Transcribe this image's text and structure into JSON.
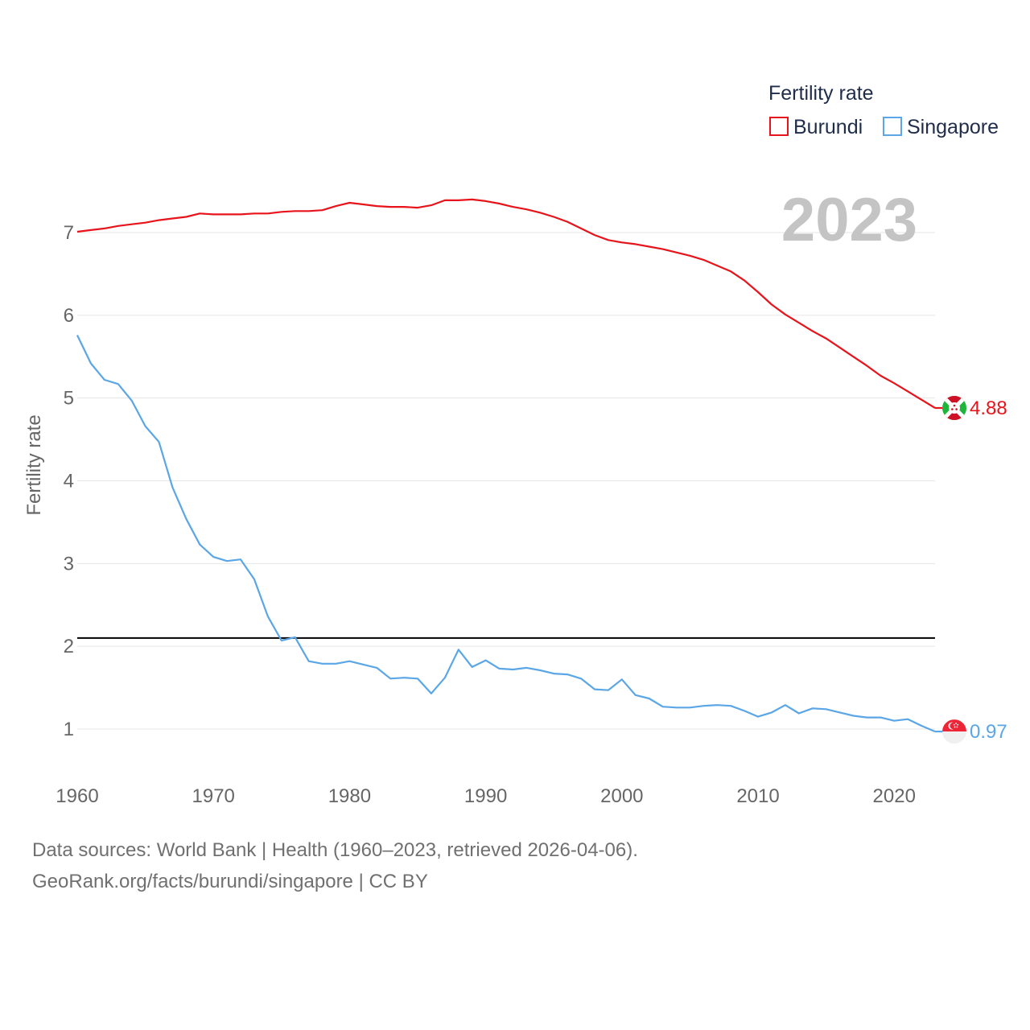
{
  "chart_data": {
    "type": "line",
    "title": "",
    "year_label": "2023",
    "ylabel": "Fertility rate",
    "xlabel": "",
    "xlim": [
      1960,
      2023
    ],
    "ylim": [
      0.5,
      7.7
    ],
    "x_ticks": [
      1960,
      1970,
      1980,
      1990,
      2000,
      2010,
      2020
    ],
    "y_ticks": [
      1,
      2,
      3,
      4,
      5,
      6,
      7
    ],
    "reference_line": {
      "y": 2.1,
      "color": "#000000"
    },
    "legend": {
      "title": "Fertility rate",
      "position": "top-right"
    },
    "x": [
      1960,
      1961,
      1962,
      1963,
      1964,
      1965,
      1966,
      1967,
      1968,
      1969,
      1970,
      1971,
      1972,
      1973,
      1974,
      1975,
      1976,
      1977,
      1978,
      1979,
      1980,
      1981,
      1982,
      1983,
      1984,
      1985,
      1986,
      1987,
      1988,
      1989,
      1990,
      1991,
      1992,
      1993,
      1994,
      1995,
      1996,
      1997,
      1998,
      1999,
      2000,
      2001,
      2002,
      2003,
      2004,
      2005,
      2006,
      2007,
      2008,
      2009,
      2010,
      2011,
      2012,
      2013,
      2014,
      2015,
      2016,
      2017,
      2018,
      2019,
      2020,
      2021,
      2022,
      2023
    ],
    "series": [
      {
        "name": "Burundi",
        "color": "#e8141b",
        "end_label": "4.88",
        "values": [
          7.01,
          7.03,
          7.05,
          7.08,
          7.1,
          7.12,
          7.15,
          7.17,
          7.19,
          7.23,
          7.22,
          7.22,
          7.22,
          7.23,
          7.23,
          7.25,
          7.26,
          7.26,
          7.27,
          7.32,
          7.36,
          7.34,
          7.32,
          7.31,
          7.31,
          7.3,
          7.33,
          7.39,
          7.39,
          7.4,
          7.38,
          7.35,
          7.31,
          7.28,
          7.24,
          7.19,
          7.13,
          7.05,
          6.97,
          6.91,
          6.88,
          6.86,
          6.83,
          6.8,
          6.76,
          6.72,
          6.67,
          6.6,
          6.53,
          6.42,
          6.28,
          6.13,
          6.01,
          5.91,
          5.81,
          5.72,
          5.61,
          5.5,
          5.39,
          5.27,
          5.18,
          5.08,
          4.98,
          4.88
        ]
      },
      {
        "name": "Singapore",
        "color": "#5aa6e6",
        "end_label": "0.97",
        "values": [
          5.76,
          5.42,
          5.22,
          5.17,
          4.97,
          4.66,
          4.47,
          3.92,
          3.54,
          3.23,
          3.08,
          3.03,
          3.05,
          2.81,
          2.36,
          2.07,
          2.11,
          1.82,
          1.79,
          1.79,
          1.82,
          1.78,
          1.74,
          1.61,
          1.62,
          1.61,
          1.43,
          1.62,
          1.96,
          1.75,
          1.83,
          1.73,
          1.72,
          1.74,
          1.71,
          1.67,
          1.66,
          1.61,
          1.48,
          1.47,
          1.6,
          1.41,
          1.37,
          1.27,
          1.26,
          1.26,
          1.28,
          1.29,
          1.28,
          1.22,
          1.15,
          1.2,
          1.29,
          1.19,
          1.25,
          1.24,
          1.2,
          1.16,
          1.14,
          1.14,
          1.1,
          1.12,
          1.04,
          0.97
        ]
      }
    ]
  },
  "footer": {
    "line1": "Data sources: World Bank | Health (1960–2023, retrieved 2026-04-06).",
    "line2": "GeoRank.org/facts/burundi/singapore | CC BY"
  }
}
